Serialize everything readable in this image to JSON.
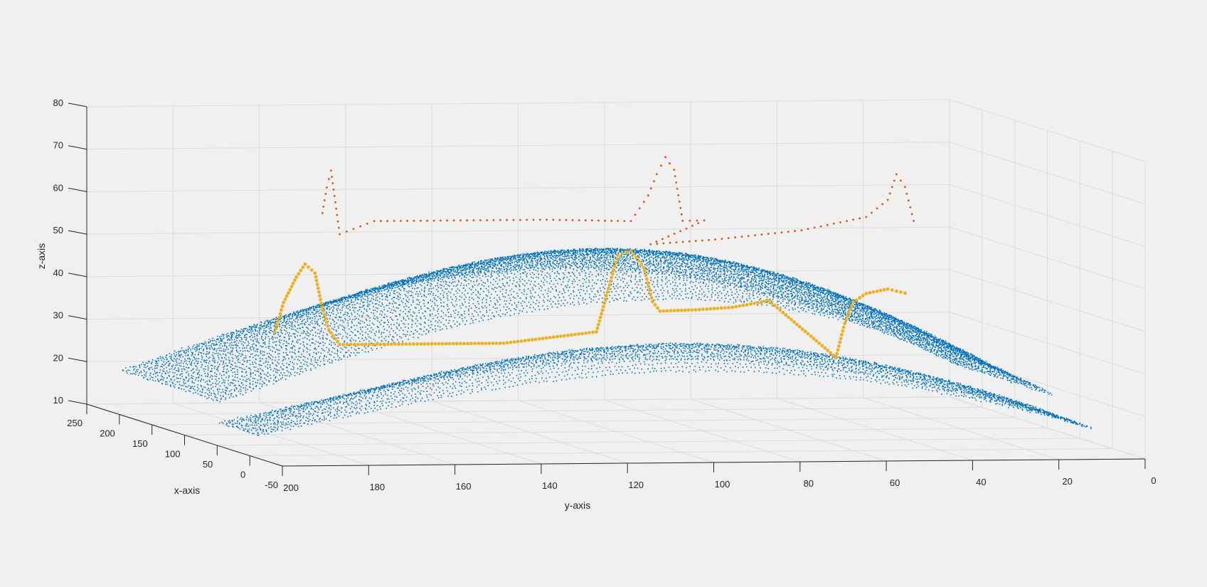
{
  "chart_data": {
    "type": "scatter3d",
    "title": "",
    "xlabel": "x-axis",
    "ylabel": "y-axis",
    "zlabel": "z-axis",
    "xlim": [
      -50,
      250
    ],
    "ylim": [
      0,
      200
    ],
    "zlim": [
      10,
      80
    ],
    "x_ticks": [
      "-50",
      "0",
      "50",
      "100",
      "150",
      "200",
      "250"
    ],
    "y_ticks": [
      "0",
      "20",
      "40",
      "60",
      "80",
      "100",
      "120",
      "140",
      "160",
      "180",
      "200"
    ],
    "z_ticks": [
      "10",
      "20",
      "30",
      "40",
      "50",
      "60",
      "70",
      "80"
    ],
    "y_direction": "reversed",
    "grid": true,
    "background_color": "#f0f0f0",
    "series": [
      {
        "color": "#0072bd",
        "marker": "dot",
        "description": "surface point cloud",
        "surfaces": [
          {
            "y_range": [
              2,
              195
            ],
            "x_range": [
              20,
              80
            ],
            "z_profile": "arched",
            "z_edge": 14,
            "z_peak": 33
          },
          {
            "y_range": [
              2,
              195
            ],
            "x_range": [
              80,
              230
            ],
            "z_profile": "arched",
            "z_edge": 19,
            "z_peak": 50
          }
        ]
      },
      {
        "color": "#edb120",
        "marker": "dot",
        "description": "on-surface trajectory",
        "points": [
          [
            160,
            170,
            31
          ],
          [
            160,
            168,
            38
          ],
          [
            160,
            165,
            44
          ],
          [
            160,
            163,
            47
          ],
          [
            158,
            161,
            45
          ],
          [
            155,
            160,
            38
          ],
          [
            150,
            159,
            32
          ],
          [
            140,
            158,
            29
          ],
          [
            140,
            140,
            29
          ],
          [
            140,
            120,
            29
          ],
          [
            110,
            103,
            33
          ],
          [
            110,
            100,
            44
          ],
          [
            110,
            98,
            51
          ],
          [
            110,
            95,
            52
          ],
          [
            110,
            92,
            48
          ],
          [
            110,
            90,
            40
          ],
          [
            105,
            89,
            38
          ],
          [
            110,
            80,
            38
          ],
          [
            120,
            70,
            38
          ],
          [
            130,
            60,
            39
          ],
          [
            80,
            52,
            28
          ],
          [
            80,
            50,
            36
          ],
          [
            80,
            48,
            41
          ],
          [
            80,
            45,
            43
          ],
          [
            80,
            40,
            44
          ],
          [
            80,
            36,
            43
          ]
        ]
      },
      {
        "color": "#d95319",
        "marker": "dot",
        "description": "trajectory above surface",
        "points": [
          [
            140,
            162,
            60
          ],
          [
            140,
            161,
            66
          ],
          [
            140,
            160,
            70
          ],
          [
            140,
            158,
            55
          ],
          [
            140,
            150,
            58
          ],
          [
            140,
            130,
            58
          ],
          [
            140,
            110,
            58
          ],
          [
            130,
            92,
            58
          ],
          [
            130,
            88,
            64
          ],
          [
            130,
            86,
            69
          ],
          [
            130,
            84,
            73
          ],
          [
            130,
            82,
            70
          ],
          [
            130,
            80,
            58
          ],
          [
            130,
            75,
            58
          ],
          [
            80,
            95,
            55
          ],
          [
            80,
            80,
            56
          ],
          [
            80,
            60,
            58
          ],
          [
            80,
            45,
            61
          ],
          [
            80,
            40,
            65
          ],
          [
            80,
            38,
            71
          ],
          [
            80,
            36,
            68
          ],
          [
            80,
            34,
            60
          ]
        ]
      }
    ]
  }
}
